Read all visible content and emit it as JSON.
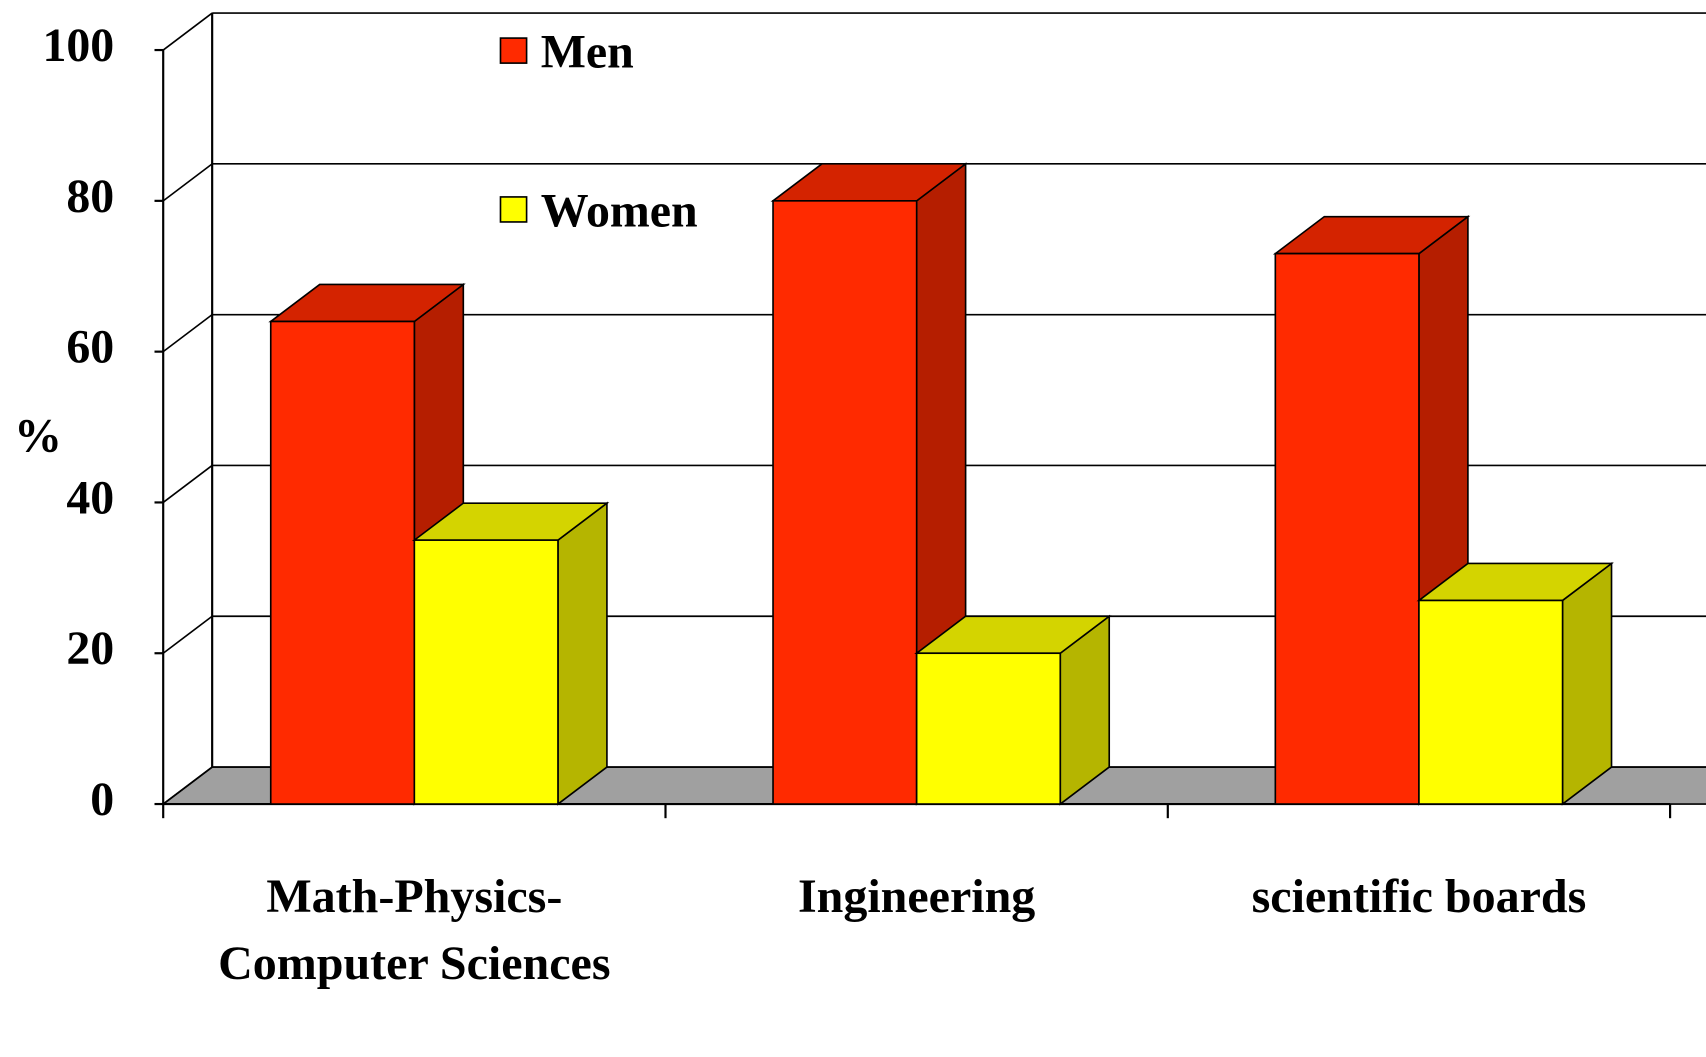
{
  "chart_data": {
    "type": "bar3d",
    "ylabel": "%",
    "categories": [
      "Math-Physics-Computer Sciences",
      "Ingineering",
      "scientific boards"
    ],
    "series": [
      {
        "name": "Men",
        "color": "#ff2a00",
        "values": [
          64,
          80,
          73
        ]
      },
      {
        "name": "Women",
        "color": "#ffff00",
        "values": [
          35,
          20,
          27
        ]
      }
    ],
    "ylim": [
      0,
      100
    ],
    "yticks": [
      0,
      20,
      40,
      60,
      80,
      100
    ],
    "grid": true
  }
}
